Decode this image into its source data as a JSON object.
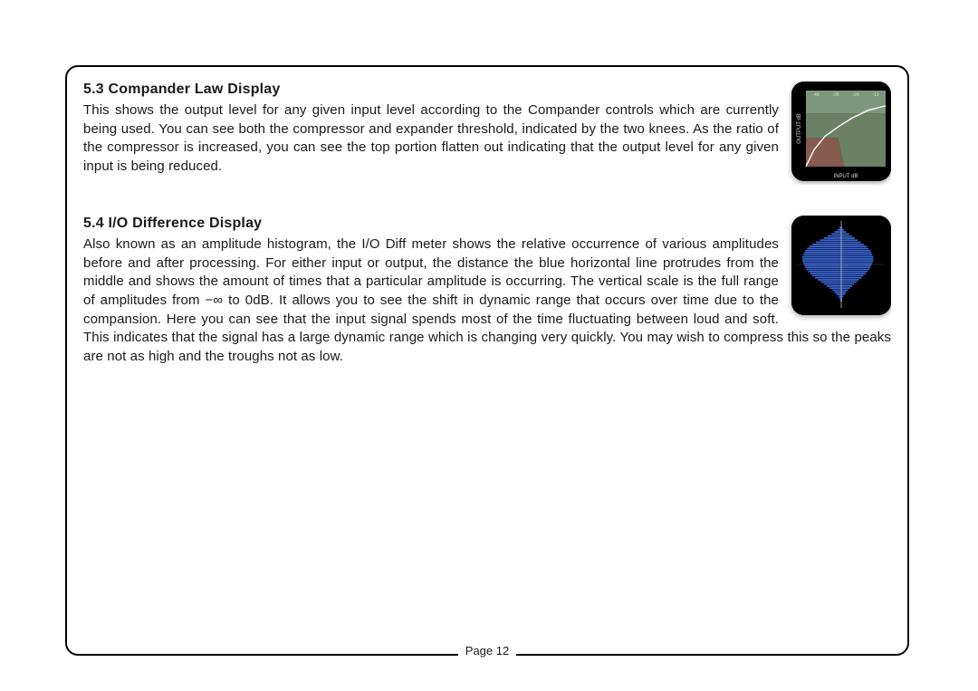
{
  "sections": [
    {
      "heading": "5.3 Compander Law Display",
      "body": "This shows the output level for any given input level according to the Compander controls which are currently being used. You can see both the compressor and expander threshold, indicated by the two knees. As the ratio of the compressor is increased, you can see the top portion flatten out indicating that the output level for any given input is being reduced."
    },
    {
      "heading": "5.4 I/O Difference Display",
      "body": "Also known as an amplitude histogram, the I/O Diff meter shows the relative occurrence of various amplitudes before and after processing. For either input or output, the distance the blue horizontal line protrudes from the middle and shows the amount of times that a particular amplitude is occurring. The vertical scale is the full range of amplitudes from −∞ to 0dB. It allows you to see the shift in dynamic range that occurs over time due to the compansion. Here you can see that the input signal spends most of the time fluctuating between loud and soft. This indicates that the signal has a large dynamic range which is changing very quickly. You may wish to compress this so the peaks are not as high and the troughs not as low."
    }
  ],
  "page_label": "Page 12",
  "compander_chart": {
    "type": "line-area",
    "background_color": "#000000",
    "plot_bg": "#000000",
    "border_radius": 14,
    "x_axis_label": "INPUT dB",
    "y_axis_label": "OUTPUT dB",
    "label_color": "#d8d8d8",
    "label_fontsize": 6,
    "x_ticks": [
      -48,
      -36,
      -24,
      -12
    ],
    "y_ticks": [
      -48,
      -36,
      -24,
      -12
    ],
    "tick_color": "#d8d8d8",
    "tick_fontsize": 5,
    "grid_color": "#2b2b2b",
    "polygons": [
      {
        "name": "lower-wedge",
        "color": "#9c6b5c",
        "points": [
          [
            0,
            100
          ],
          [
            0,
            62
          ],
          [
            40,
            62
          ],
          [
            48,
            100
          ]
        ]
      },
      {
        "name": "mid-wedge",
        "color": "#7d9876",
        "points": [
          [
            40,
            62
          ],
          [
            0,
            62
          ],
          [
            0,
            30
          ],
          [
            100,
            30
          ],
          [
            100,
            100
          ],
          [
            48,
            100
          ]
        ]
      },
      {
        "name": "upper-wedge",
        "color": "#93b392",
        "points": [
          [
            0,
            30
          ],
          [
            0,
            0
          ],
          [
            100,
            0
          ],
          [
            100,
            30
          ]
        ]
      }
    ],
    "curve": {
      "color": "#fefefe",
      "width": 1.4,
      "points": [
        [
          0,
          100
        ],
        [
          10,
          78
        ],
        [
          24,
          60
        ],
        [
          40,
          48
        ],
        [
          58,
          36
        ],
        [
          78,
          26
        ],
        [
          100,
          20
        ]
      ]
    }
  },
  "io_diff_chart": {
    "type": "histogram-mirror",
    "background_color": "#000000",
    "border_radius": 14,
    "center_line_color": "#c0c0c0",
    "axis_color": "#888888",
    "bar_color": "#3a66d8",
    "bar_count": 40,
    "left_values": [
      0,
      0,
      2,
      4,
      7,
      10,
      14,
      18,
      22,
      26,
      30,
      33,
      35,
      37,
      38,
      39,
      40,
      40,
      40,
      39,
      38,
      37,
      36,
      34,
      32,
      30,
      27,
      24,
      21,
      18,
      15,
      12,
      9,
      7,
      5,
      3,
      2,
      1,
      0,
      0
    ],
    "right_values": [
      0,
      0,
      1,
      3,
      5,
      8,
      11,
      14,
      17,
      20,
      23,
      26,
      28,
      30,
      31,
      32,
      33,
      33,
      33,
      32,
      31,
      30,
      29,
      27,
      25,
      23,
      21,
      18,
      16,
      13,
      11,
      9,
      7,
      5,
      4,
      2,
      1,
      1,
      0,
      0
    ],
    "max_value": 40
  },
  "colors": {
    "page_border": "#000000",
    "text": "#1a1a1a",
    "background": "#ffffff"
  },
  "typography": {
    "heading_fontsize": 16,
    "heading_weight": 700,
    "body_fontsize": 15,
    "body_lineheight": 1.38,
    "footer_fontsize": 13
  }
}
